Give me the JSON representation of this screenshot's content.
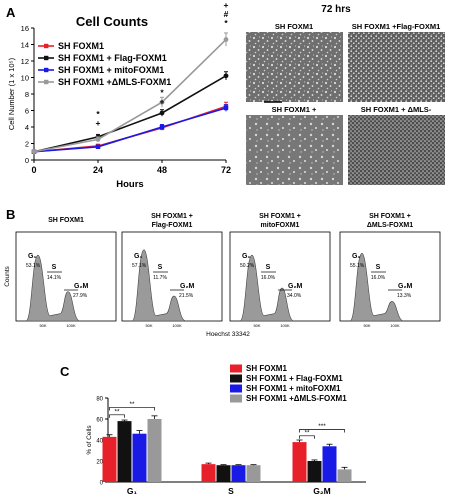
{
  "panels": {
    "a": {
      "letter": "A",
      "chart_title": "Cell Counts",
      "photos_title": "72 hrs",
      "photo_labels": [
        "SH FOXM1",
        "SH FOXM1 +Flag-FOXM1",
        "SH FOXM1 +",
        "SH FOXM1 + ΔMLS-"
      ]
    },
    "b": {
      "letter": "B",
      "titles": [
        [
          "SH FOXM1"
        ],
        [
          "SH FOXM1 +",
          "Flag-FOXM1"
        ],
        [
          "SH FOXM1 +",
          "mitoFOXM1"
        ],
        [
          "SH FOXM1 +",
          "ΔMLS-FOXM1"
        ]
      ],
      "ylabel": "Counts",
      "xlabel": "Hoechst 33342",
      "gate_labels": [
        "G₁",
        "S",
        "G₂M"
      ],
      "gate_values": [
        [
          "53.1%",
          "14.1%",
          "27.9%"
        ],
        [
          "57.1%",
          "11.7%",
          "21.5%"
        ],
        [
          "50.2%",
          "16.0%",
          "34.0%"
        ],
        [
          "55.1%",
          "16.0%",
          "13.3%"
        ]
      ],
      "x_ticks": [
        "50K",
        "100K"
      ]
    },
    "c": {
      "letter": "C",
      "significance": [
        "**",
        "**",
        "**",
        "***"
      ]
    }
  },
  "colors": {
    "sh_foxm1": "#e8202a",
    "flag_foxm1": "#111111",
    "mito_foxm1": "#1a1ae6",
    "dmls_foxm1": "#999999",
    "histogram_fill": "#9a9a9a"
  },
  "chart_data": [
    {
      "type": "line",
      "title": "Cell Counts",
      "xlabel": "Hours",
      "ylabel": "Cell Number (1 x 10⁵)",
      "x": [
        0,
        24,
        48,
        72
      ],
      "xlim": [
        0,
        72
      ],
      "ylim": [
        0,
        16
      ],
      "x_ticks": [
        0,
        24,
        48,
        72
      ],
      "y_ticks": [
        0,
        2,
        4,
        6,
        8,
        10,
        12,
        14,
        16
      ],
      "legend_position": "top-left",
      "series": [
        {
          "name": "SH FOXM1",
          "values": [
            1,
            1.7,
            3.9,
            6.5
          ],
          "errors": [
            0.1,
            0.2,
            0.3,
            0.5
          ]
        },
        {
          "name": "SH FOXM1 + Flag-FOXM1",
          "values": [
            1,
            2.8,
            5.7,
            10.2
          ],
          "errors": [
            0.1,
            0.3,
            0.4,
            0.5
          ]
        },
        {
          "name": "SH FOXM1 + mitoFOXM1",
          "values": [
            1,
            1.6,
            4.0,
            6.3
          ],
          "errors": [
            0.1,
            0.2,
            0.3,
            0.4
          ]
        },
        {
          "name": "SH FOXM1 +ΔMLS-FOXM1",
          "values": [
            1,
            2.5,
            7.0,
            14.6
          ],
          "errors": [
            0.1,
            0.3,
            0.6,
            0.8
          ]
        }
      ],
      "annotations": [
        {
          "x": 24,
          "symbols": [
            "+",
            "*"
          ]
        },
        {
          "x": 48,
          "symbols": [
            "+",
            "*"
          ]
        },
        {
          "x": 72,
          "symbols": [
            "*",
            "#",
            "+"
          ]
        }
      ]
    },
    {
      "type": "bar",
      "ylabel": "% of Cells",
      "categories": [
        "G₁",
        "S",
        "G₂M"
      ],
      "ylim": [
        0,
        80
      ],
      "y_ticks": [
        0,
        20,
        40,
        60,
        80
      ],
      "legend_position": "top-right",
      "series": [
        {
          "name": "SH FOXM1",
          "values": [
            43,
            17,
            38
          ],
          "errors": [
            2,
            1,
            2
          ]
        },
        {
          "name": "SH FOXM1 + Flag-FOXM1",
          "values": [
            58,
            16,
            20
          ],
          "errors": [
            1,
            0.5,
            1
          ]
        },
        {
          "name": "SH FOXM1 + mitoFOXM1",
          "values": [
            46,
            16,
            34
          ],
          "errors": [
            3,
            0.5,
            2
          ]
        },
        {
          "name": "SH FOXM1 +ΔMLS-FOXM1",
          "values": [
            60,
            16,
            12
          ],
          "errors": [
            3,
            0.5,
            2
          ]
        }
      ]
    }
  ]
}
